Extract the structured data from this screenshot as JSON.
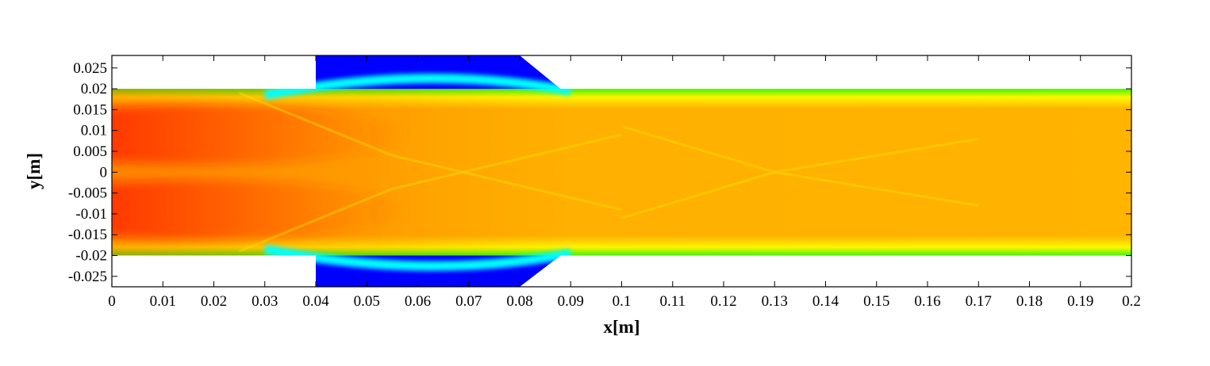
{
  "chart_data": {
    "type": "heatmap",
    "title": "",
    "xlabel": "x[m]",
    "ylabel": "y[m]",
    "xlim": [
      0,
      0.2
    ],
    "ylim": [
      -0.0275,
      0.028
    ],
    "grid": false,
    "legend": "none",
    "x_ticks": [
      0,
      0.01,
      0.02,
      0.03,
      0.04,
      0.05,
      0.06,
      0.07,
      0.08,
      0.09,
      0.1,
      0.11,
      0.12,
      0.13,
      0.14,
      0.15,
      0.16,
      0.17,
      0.18,
      0.19,
      0.2
    ],
    "x_tick_labels": [
      "0",
      "0.01",
      "0.02",
      "0.03",
      "0.04",
      "0.05",
      "0.06",
      "0.07",
      "0.08",
      "0.09",
      "0.1",
      "0.11",
      "0.12",
      "0.13",
      "0.14",
      "0.15",
      "0.16",
      "0.17",
      "0.18",
      "0.19",
      "0.2"
    ],
    "y_ticks": [
      0.025,
      0.02,
      0.015,
      0.01,
      0.005,
      0,
      -0.005,
      -0.01,
      -0.015,
      -0.02,
      -0.025
    ],
    "y_tick_labels": [
      "0.025",
      "0.02",
      "0.015",
      "0.01",
      "0.005",
      "0",
      "-0.005",
      "-0.01",
      "-0.015",
      "-0.02",
      "-0.025"
    ],
    "colormap": [
      "#0000ff",
      "#00ffff",
      "#00ff00",
      "#ffff00",
      "#ffa500",
      "#ff0000"
    ],
    "domain_outline": [
      [
        0,
        0.02
      ],
      [
        0.04,
        0.02
      ],
      [
        0.04,
        0.028
      ],
      [
        0.08,
        0.028
      ],
      [
        0.088,
        0.02
      ],
      [
        0.2,
        0.02
      ],
      [
        0.2,
        -0.02
      ],
      [
        0.088,
        -0.02
      ],
      [
        0.08,
        -0.0275
      ],
      [
        0.04,
        -0.0275
      ],
      [
        0.04,
        -0.02
      ],
      [
        0,
        -0.02
      ]
    ],
    "cavity": {
      "x_start": 0.04,
      "x_end": 0.088,
      "top_edge_end_x": 0.08,
      "upper_y": 0.028,
      "lower_y": -0.0275
    }
  }
}
